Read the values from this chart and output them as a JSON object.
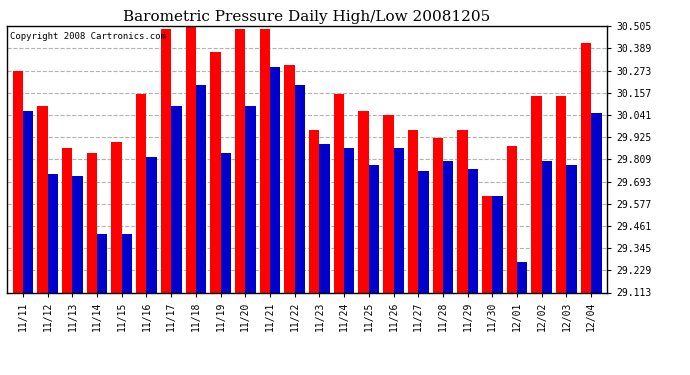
{
  "title": "Barometric Pressure Daily High/Low 20081205",
  "copyright": "Copyright 2008 Cartronics.com",
  "dates": [
    "11/11",
    "11/12",
    "11/13",
    "11/14",
    "11/15",
    "11/16",
    "11/17",
    "11/18",
    "11/19",
    "11/20",
    "11/21",
    "11/22",
    "11/23",
    "11/24",
    "11/25",
    "11/26",
    "11/27",
    "11/28",
    "11/29",
    "11/30",
    "12/01",
    "12/02",
    "12/03",
    "12/04"
  ],
  "highs": [
    30.27,
    30.09,
    29.87,
    29.84,
    29.9,
    30.15,
    30.49,
    30.5,
    30.37,
    30.49,
    30.49,
    30.3,
    29.96,
    30.15,
    30.06,
    30.04,
    29.96,
    29.92,
    29.96,
    29.62,
    29.88,
    30.14,
    30.14,
    30.42
  ],
  "lows": [
    30.06,
    29.73,
    29.72,
    29.42,
    29.42,
    29.82,
    30.09,
    30.2,
    29.84,
    30.09,
    30.29,
    30.2,
    29.89,
    29.87,
    29.78,
    29.87,
    29.75,
    29.8,
    29.76,
    29.62,
    29.27,
    29.8,
    29.78,
    30.05
  ],
  "high_color": "#ff0000",
  "low_color": "#0000cc",
  "bg_color": "#ffffff",
  "grid_color": "#aaaaaa",
  "ylim_min": 29.113,
  "ylim_max": 30.505,
  "yticks": [
    29.113,
    29.229,
    29.345,
    29.461,
    29.577,
    29.693,
    29.809,
    29.925,
    30.041,
    30.157,
    30.273,
    30.389,
    30.505
  ],
  "title_fontsize": 11,
  "tick_fontsize": 7,
  "bar_width": 0.42
}
